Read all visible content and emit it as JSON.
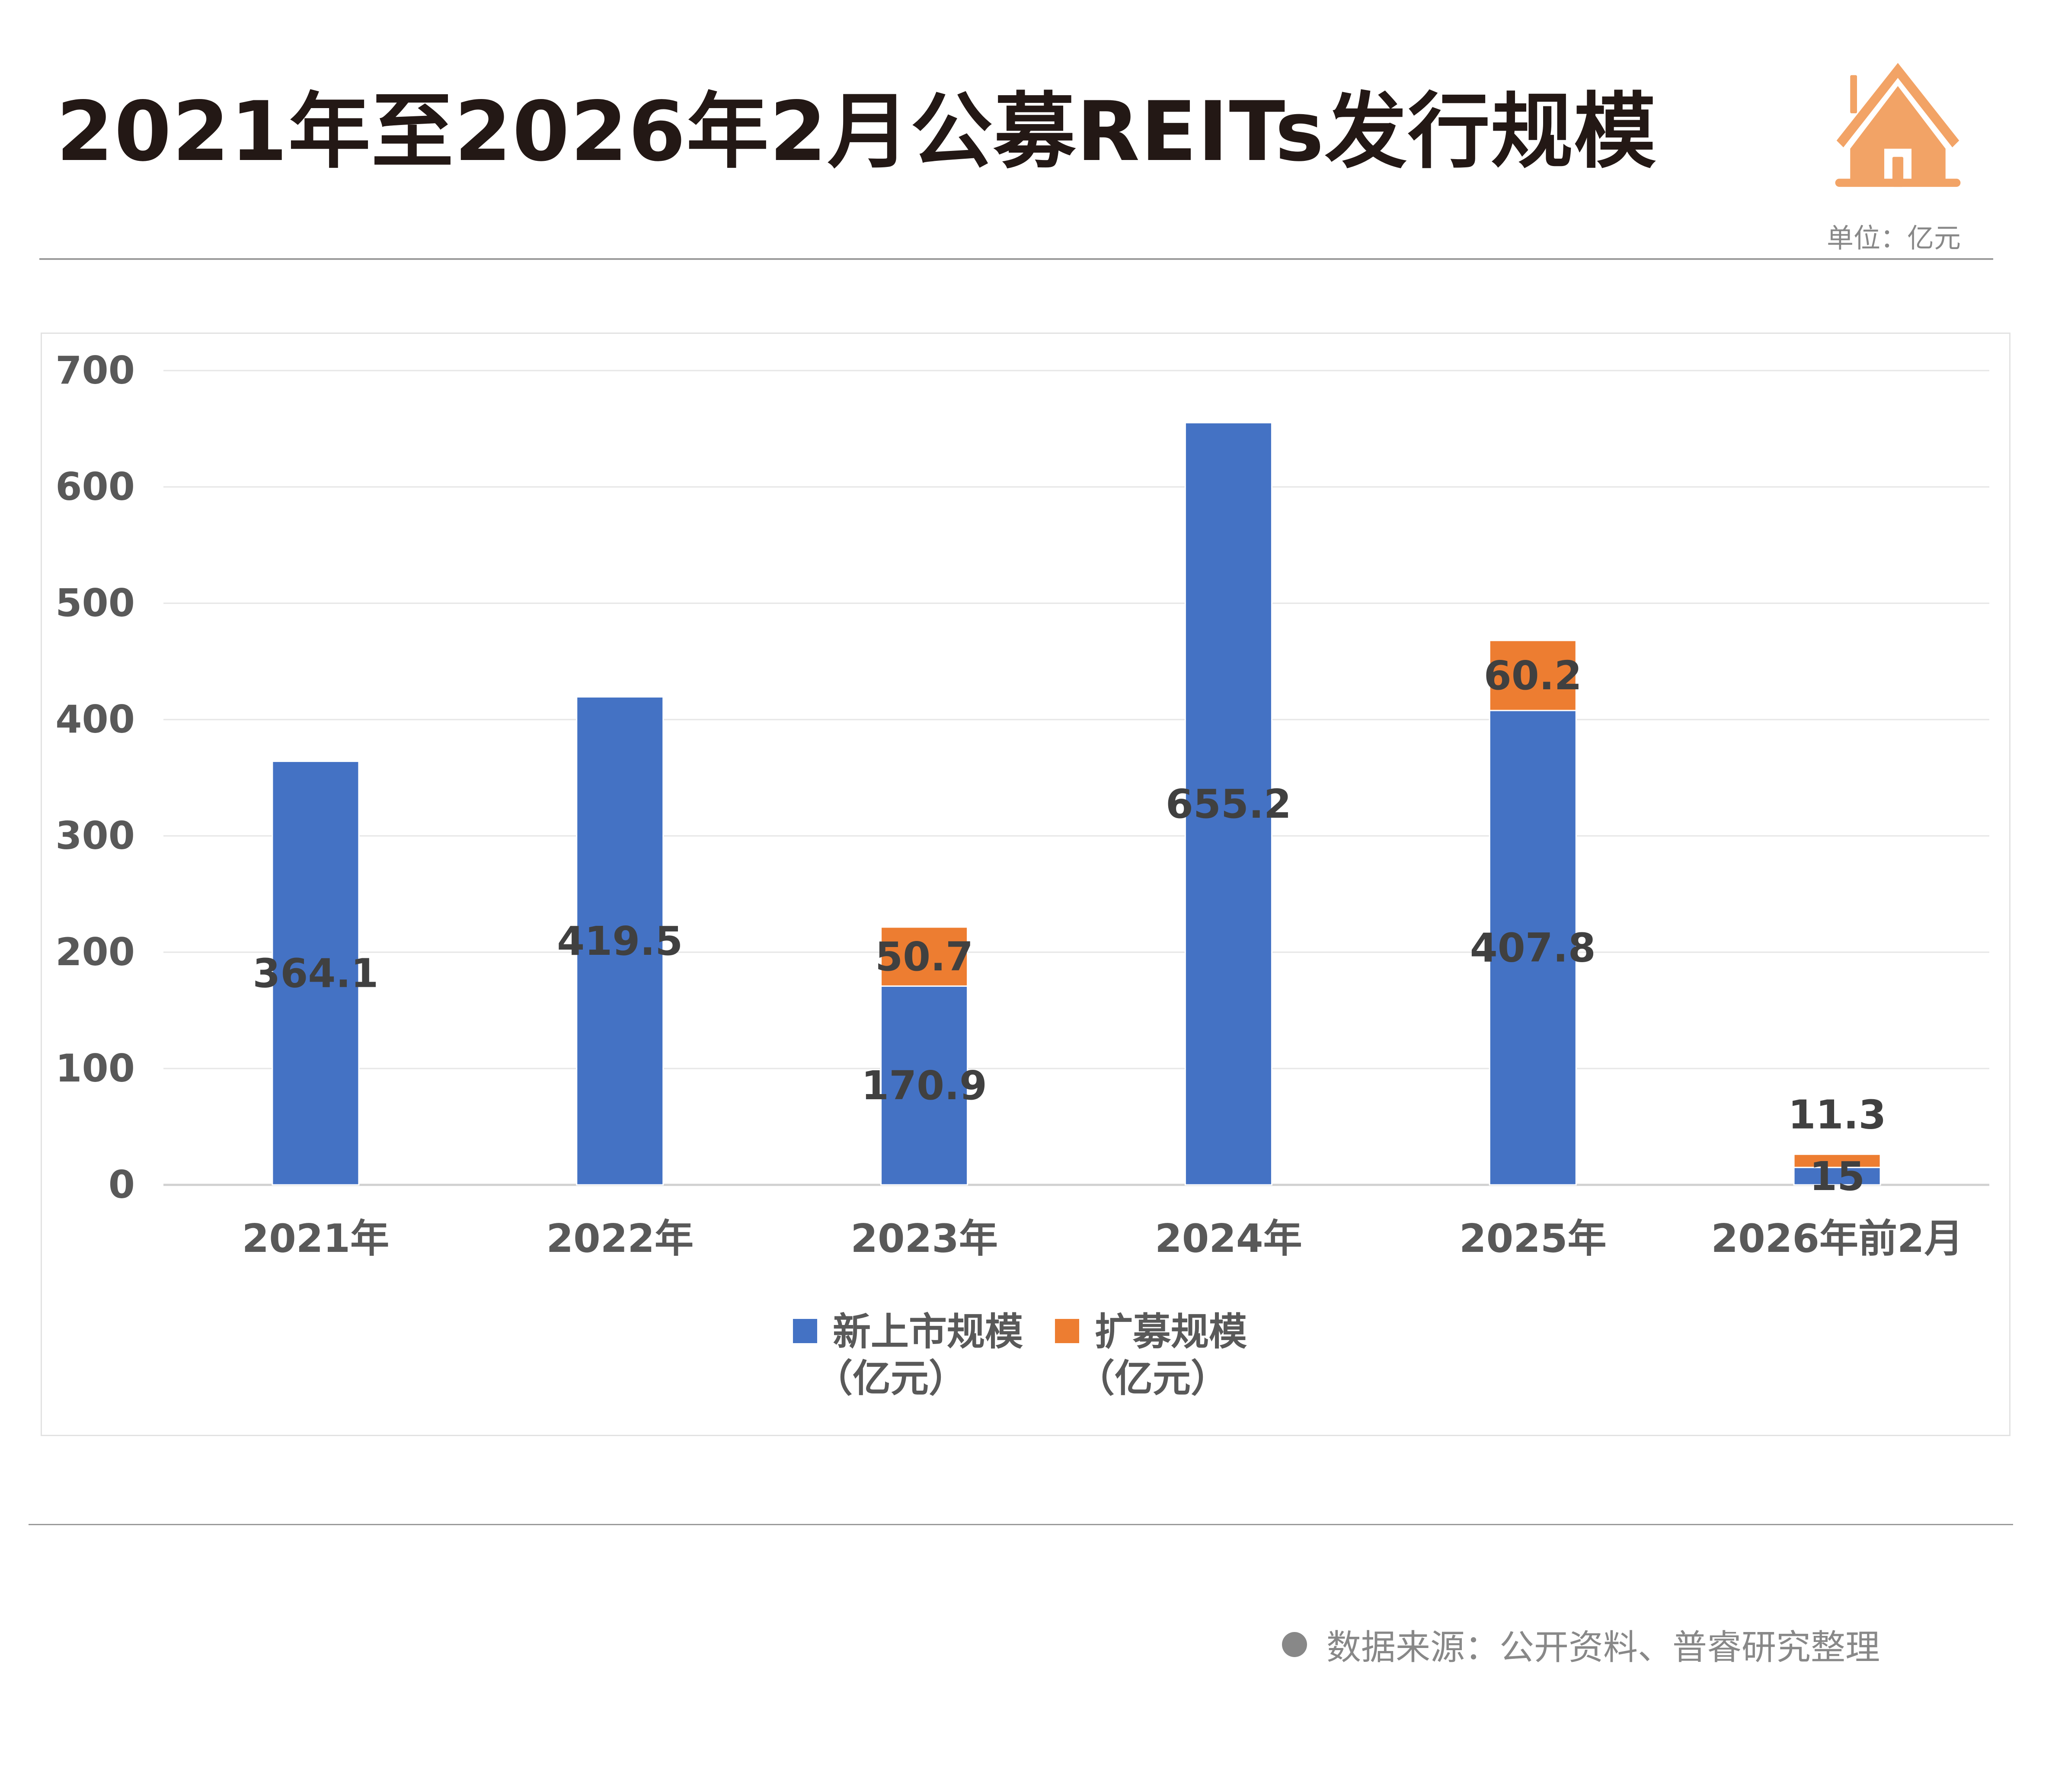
{
  "header": {
    "title": "2021年至2026年2月公募REITs发行规模",
    "unit": "单位：亿元",
    "logo_icon": "house-icon",
    "logo_color": "#f2a366"
  },
  "footer": {
    "source": "数据来源：公开资料、普睿研究整理"
  },
  "chart_data": {
    "type": "bar",
    "stacked": true,
    "categories": [
      "2021年",
      "2022年",
      "2023年",
      "2024年",
      "2025年",
      "2026年前2月"
    ],
    "series": [
      {
        "name": "新上市规模（亿元）",
        "legend_lines": [
          "新上市规模",
          "（亿元）"
        ],
        "color": "#4472c4",
        "values": [
          364.1,
          419.5,
          170.9,
          655.2,
          407.8,
          15
        ],
        "labels": [
          "364.1",
          "419.5",
          "170.9",
          "655.2",
          "407.8",
          "15"
        ]
      },
      {
        "name": "扩募规模（亿元）",
        "legend_lines": [
          "扩募规模",
          "（亿元）"
        ],
        "color": "#ed7d31",
        "values": [
          null,
          null,
          50.7,
          null,
          60.2,
          11.3
        ],
        "labels": [
          "",
          "",
          "50.7",
          "",
          "60.2",
          "11.3"
        ]
      }
    ],
    "yticks": [
      "0",
      "100",
      "200",
      "300",
      "400",
      "500",
      "600",
      "700"
    ],
    "ylim": [
      0,
      700
    ],
    "grid": true,
    "legend": "bottom",
    "xlabel": "",
    "ylabel": "",
    "title": ""
  }
}
